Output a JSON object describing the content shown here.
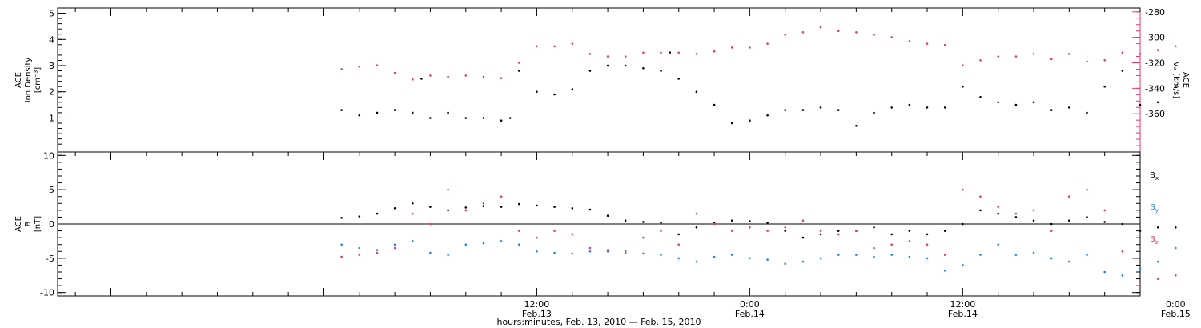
{
  "footer": {
    "time_axis_title": "hours:minutes, Feb. 13, 2010 — Feb. 15, 2010"
  },
  "colors": {
    "black": "#000000",
    "pink": "#e8386e",
    "blue": "#1e88e5"
  },
  "chart_data": [
    {
      "type": "scatter",
      "panel": "top",
      "left_label": [
        "ACE",
        "Ion Density",
        "[cm⁻³]"
      ],
      "right_label": [
        "ACE",
        "Vₓ [km/s]"
      ],
      "x_range_hours": [
        -15,
        46
      ],
      "x_ticks": [
        {
          "h": 12,
          "labels": [
            "12:00",
            "Feb.13"
          ]
        },
        {
          "h": 24,
          "labels": [
            "0:00",
            "Feb.14"
          ]
        },
        {
          "h": 36,
          "labels": [
            "12:00",
            "Feb.14"
          ]
        },
        {
          "h": 48,
          "labels": [
            "0:00",
            "Feb.15"
          ]
        }
      ],
      "y_left": {
        "range": [
          -0.3,
          5.2
        ],
        "ticks": [
          1,
          2,
          3,
          4,
          5
        ],
        "tick_labels": [
          "1",
          "2",
          "3",
          "4",
          "5"
        ]
      },
      "y_right": {
        "range": [
          -390,
          -277
        ],
        "ticks": [
          -280,
          -300,
          -320,
          -340,
          -360
        ],
        "tick_labels": [
          "-280",
          "-300",
          "-320",
          "-340",
          "-360"
        ]
      },
      "series": [
        {
          "axis": "left",
          "color": "#000000",
          "points": [
            [
              1,
              1.3
            ],
            [
              2,
              1.1
            ],
            [
              3,
              1.2
            ],
            [
              4,
              1.3
            ],
            [
              5,
              1.2
            ],
            [
              5.5,
              2.5
            ],
            [
              6,
              1.0
            ],
            [
              7,
              1.2
            ],
            [
              8,
              1.0
            ],
            [
              9,
              1.0
            ],
            [
              10,
              0.9
            ],
            [
              10.5,
              1.0
            ],
            [
              11,
              2.8
            ],
            [
              12,
              2.0
            ],
            [
              13,
              1.9
            ],
            [
              14,
              2.1
            ],
            [
              15,
              2.8
            ],
            [
              16,
              3.0
            ],
            [
              17,
              3.0
            ],
            [
              18,
              2.9
            ],
            [
              19,
              2.8
            ],
            [
              19.5,
              3.5
            ],
            [
              20,
              2.5
            ],
            [
              21,
              2.0
            ],
            [
              22,
              1.5
            ],
            [
              23,
              0.8
            ],
            [
              24,
              0.9
            ],
            [
              25,
              1.1
            ],
            [
              26,
              1.3
            ],
            [
              27,
              1.3
            ],
            [
              28,
              1.4
            ],
            [
              29,
              1.3
            ],
            [
              30,
              0.7
            ],
            [
              31,
              1.2
            ],
            [
              32,
              1.4
            ],
            [
              33,
              1.5
            ],
            [
              34,
              1.4
            ],
            [
              35,
              1.4
            ],
            [
              36,
              2.2
            ],
            [
              37,
              1.8
            ],
            [
              38,
              1.6
            ],
            [
              39,
              1.5
            ],
            [
              40,
              1.6
            ],
            [
              41,
              1.3
            ],
            [
              42,
              1.4
            ],
            [
              43,
              1.2
            ],
            [
              44,
              2.2
            ],
            [
              45,
              2.8
            ],
            [
              46,
              1.5
            ],
            [
              47,
              1.6
            ],
            [
              48,
              2.2
            ]
          ]
        },
        {
          "axis": "right",
          "color": "#e8386e",
          "points": [
            [
              1,
              -325
            ],
            [
              2,
              -323
            ],
            [
              3,
              -322
            ],
            [
              4,
              -328
            ],
            [
              5,
              -333
            ],
            [
              6,
              -330
            ],
            [
              7,
              -331
            ],
            [
              8,
              -330
            ],
            [
              9,
              -331
            ],
            [
              10,
              -332
            ],
            [
              11,
              -320
            ],
            [
              12,
              -307
            ],
            [
              13,
              -307
            ],
            [
              14,
              -305
            ],
            [
              15,
              -313
            ],
            [
              16,
              -315
            ],
            [
              17,
              -315
            ],
            [
              18,
              -312
            ],
            [
              19,
              -312
            ],
            [
              20,
              -312
            ],
            [
              21,
              -313
            ],
            [
              22,
              -311
            ],
            [
              23,
              -308
            ],
            [
              24,
              -308
            ],
            [
              25,
              -305
            ],
            [
              26,
              -298
            ],
            [
              27,
              -296
            ],
            [
              28,
              -292
            ],
            [
              29,
              -295
            ],
            [
              30,
              -296
            ],
            [
              31,
              -298
            ],
            [
              32,
              -300
            ],
            [
              33,
              -303
            ],
            [
              34,
              -305
            ],
            [
              35,
              -306
            ],
            [
              36,
              -322
            ],
            [
              37,
              -318
            ],
            [
              38,
              -315
            ],
            [
              39,
              -315
            ],
            [
              40,
              -313
            ],
            [
              41,
              -317
            ],
            [
              42,
              -313
            ],
            [
              43,
              -319
            ],
            [
              44,
              -318
            ],
            [
              45,
              -312
            ],
            [
              46,
              -313
            ],
            [
              47,
              -310
            ],
            [
              48,
              -307
            ]
          ]
        }
      ]
    },
    {
      "type": "scatter",
      "panel": "bottom",
      "left_label": [
        "ACE",
        "B",
        "[nT]"
      ],
      "x_range_hours": [
        -15,
        46
      ],
      "y": {
        "range": [
          -10.5,
          10.5
        ],
        "ticks": [
          10,
          5,
          0,
          -5,
          -10
        ],
        "tick_labels": [
          "10",
          "5",
          "0",
          "-5",
          "-10"
        ]
      },
      "zero_line": true,
      "series": [
        {
          "name": "Bx",
          "label_base": "B",
          "label_sub": "x",
          "color": "#000000",
          "points": [
            [
              1,
              0.9
            ],
            [
              2,
              1.1
            ],
            [
              3,
              1.5
            ],
            [
              4,
              2.3
            ],
            [
              5,
              3.0
            ],
            [
              6,
              2.5
            ],
            [
              7,
              2.0
            ],
            [
              8,
              2.4
            ],
            [
              9,
              2.6
            ],
            [
              10,
              2.5
            ],
            [
              11,
              2.9
            ],
            [
              12,
              2.7
            ],
            [
              13,
              2.5
            ],
            [
              14,
              2.3
            ],
            [
              15,
              2.1
            ],
            [
              16,
              1.2
            ],
            [
              17,
              0.5
            ],
            [
              18,
              0.3
            ],
            [
              19,
              0.2
            ],
            [
              20,
              -1.5
            ],
            [
              21,
              -0.5
            ],
            [
              22,
              0.2
            ],
            [
              23,
              0.5
            ],
            [
              24,
              0.4
            ],
            [
              25,
              0.2
            ],
            [
              26,
              -1.0
            ],
            [
              27,
              -2.0
            ],
            [
              28,
              -1.5
            ],
            [
              29,
              -1.0
            ],
            [
              30,
              -1.0
            ],
            [
              31,
              -0.5
            ],
            [
              32,
              -1.5
            ],
            [
              33,
              -1.0
            ],
            [
              34,
              -1.5
            ],
            [
              35,
              -1.0
            ],
            [
              36,
              0.0
            ],
            [
              37,
              2.0
            ],
            [
              38,
              1.5
            ],
            [
              39,
              1.0
            ],
            [
              40,
              0.5
            ],
            [
              41,
              0.0
            ],
            [
              42,
              0.5
            ],
            [
              43,
              1.0
            ],
            [
              44,
              0.3
            ],
            [
              45,
              0.0
            ],
            [
              46,
              -1.0
            ],
            [
              47,
              -0.5
            ],
            [
              48,
              -0.5
            ]
          ]
        },
        {
          "name": "By",
          "label_base": "B",
          "label_sub": "y",
          "color": "#1e88e5",
          "points": [
            [
              1,
              -3.0
            ],
            [
              2,
              -3.5
            ],
            [
              3,
              -3.8
            ],
            [
              4,
              -3.0
            ],
            [
              5,
              -2.5
            ],
            [
              6,
              -4.2
            ],
            [
              7,
              -4.5
            ],
            [
              8,
              -3.0
            ],
            [
              9,
              -2.8
            ],
            [
              10,
              -2.5
            ],
            [
              11,
              -3.0
            ],
            [
              12,
              -4.0
            ],
            [
              13,
              -4.2
            ],
            [
              14,
              -4.3
            ],
            [
              15,
              -4.0
            ],
            [
              16,
              -4.0
            ],
            [
              17,
              -4.2
            ],
            [
              18,
              -4.3
            ],
            [
              19,
              -4.5
            ],
            [
              20,
              -5.0
            ],
            [
              21,
              -5.5
            ],
            [
              22,
              -4.8
            ],
            [
              23,
              -4.5
            ],
            [
              24,
              -5.0
            ],
            [
              25,
              -5.2
            ],
            [
              26,
              -5.8
            ],
            [
              27,
              -5.5
            ],
            [
              28,
              -5.0
            ],
            [
              29,
              -4.5
            ],
            [
              30,
              -4.5
            ],
            [
              31,
              -4.8
            ],
            [
              32,
              -4.5
            ],
            [
              33,
              -4.8
            ],
            [
              34,
              -5.0
            ],
            [
              35,
              -6.8
            ],
            [
              36,
              -6.0
            ],
            [
              37,
              -4.5
            ],
            [
              38,
              -3.0
            ],
            [
              39,
              -4.5
            ],
            [
              40,
              -4.2
            ],
            [
              41,
              -5.0
            ],
            [
              42,
              -5.5
            ],
            [
              43,
              -4.5
            ],
            [
              44,
              -7.0
            ],
            [
              45,
              -7.5
            ],
            [
              46,
              -6.5
            ],
            [
              47,
              -5.5
            ],
            [
              48,
              -3.5
            ]
          ]
        },
        {
          "name": "Bz",
          "label_base": "B",
          "label_sub": "z",
          "color": "#e8386e",
          "points": [
            [
              1,
              -4.8
            ],
            [
              2,
              -4.5
            ],
            [
              3,
              -4.2
            ],
            [
              4,
              -3.5
            ],
            [
              5,
              1.5
            ],
            [
              6,
              0.0
            ],
            [
              7,
              5.0
            ],
            [
              8,
              2.0
            ],
            [
              9,
              3.0
            ],
            [
              10,
              4.0
            ],
            [
              11,
              -1.0
            ],
            [
              12,
              -2.0
            ],
            [
              13,
              -1.0
            ],
            [
              14,
              -1.5
            ],
            [
              15,
              -3.5
            ],
            [
              16,
              -3.8
            ],
            [
              17,
              -4.0
            ],
            [
              18,
              -2.0
            ],
            [
              19,
              -1.0
            ],
            [
              20,
              -3.0
            ],
            [
              21,
              1.5
            ],
            [
              22,
              0.0
            ],
            [
              23,
              -1.0
            ],
            [
              24,
              -0.5
            ],
            [
              25,
              -1.0
            ],
            [
              26,
              -0.5
            ],
            [
              27,
              0.5
            ],
            [
              28,
              -1.0
            ],
            [
              29,
              -1.5
            ],
            [
              30,
              -1.0
            ],
            [
              31,
              -3.5
            ],
            [
              32,
              -3.0
            ],
            [
              33,
              -2.5
            ],
            [
              34,
              -3.0
            ],
            [
              35,
              -4.5
            ],
            [
              36,
              5.0
            ],
            [
              37,
              4.0
            ],
            [
              38,
              2.5
            ],
            [
              39,
              1.5
            ],
            [
              40,
              2.0
            ],
            [
              41,
              -1.0
            ],
            [
              42,
              4.0
            ],
            [
              43,
              5.0
            ],
            [
              44,
              2.0
            ],
            [
              45,
              -4.0
            ],
            [
              46,
              -9.0
            ],
            [
              47,
              -8.0
            ],
            [
              48,
              -7.5
            ]
          ]
        }
      ]
    }
  ]
}
